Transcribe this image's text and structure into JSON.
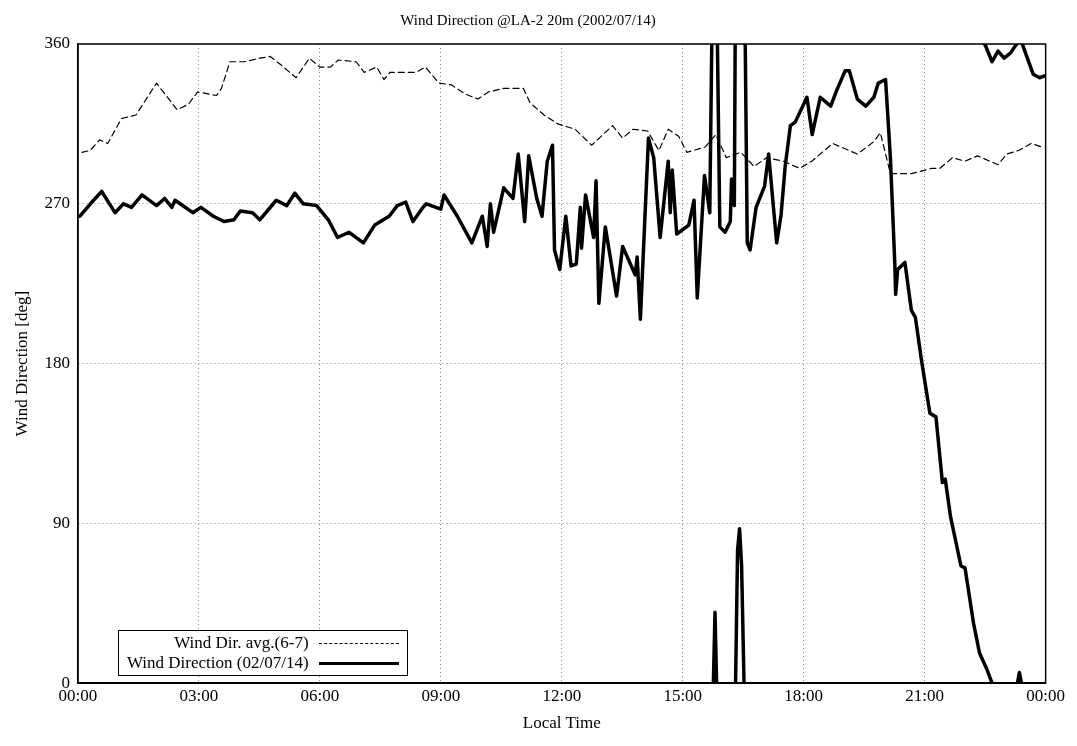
{
  "chart_data": {
    "type": "line",
    "title": "Wind Direction @LA-2 20m (2002/07/14)",
    "xlabel": "Local Time",
    "ylabel": "Wind Direction [deg]",
    "xlim": [
      0,
      24
    ],
    "xticks": [
      {
        "value": 0,
        "label": "00:00"
      },
      {
        "value": 3,
        "label": "03:00"
      },
      {
        "value": 6,
        "label": "06:00"
      },
      {
        "value": 9,
        "label": "09:00"
      },
      {
        "value": 12,
        "label": "12:00"
      },
      {
        "value": 15,
        "label": "15:00"
      },
      {
        "value": 18,
        "label": "18:00"
      },
      {
        "value": 21,
        "label": "21:00"
      },
      {
        "value": 24,
        "label": "00:00"
      }
    ],
    "ylim": [
      0,
      360
    ],
    "yticks": [
      0,
      90,
      180,
      270,
      360
    ],
    "grid": true,
    "legend": "bottom left",
    "series": [
      {
        "name": "Wind Dir. avg.(6-7)",
        "color": "#000000",
        "line_style": "dashed",
        "x": [
          0.1,
          0.3,
          0.54,
          0.74,
          1.08,
          1.44,
          1.95,
          2.46,
          2.74,
          2.97,
          3.44,
          3.56,
          3.77,
          4.13,
          4.51,
          4.77,
          5.05,
          5.41,
          5.74,
          6.0,
          6.26,
          6.46,
          6.9,
          7.1,
          7.41,
          7.59,
          7.74,
          8.38,
          8.62,
          8.95,
          9.26,
          9.59,
          9.92,
          10.18,
          10.56,
          11.05,
          11.21,
          11.56,
          11.9,
          12.33,
          12.74,
          13.26,
          13.51,
          13.77,
          14.13,
          14.41,
          14.64,
          14.9,
          15.1,
          15.56,
          15.82,
          16.08,
          16.44,
          16.77,
          17.08,
          17.49,
          17.9,
          18.2,
          18.72,
          19.33,
          19.74,
          19.9,
          20.15,
          20.67,
          21.18,
          21.38,
          21.69,
          22.0,
          22.31,
          22.82,
          23.03,
          23.33,
          23.64,
          23.9
        ],
        "values": [
          299,
          300,
          306,
          304,
          318,
          320,
          338,
          323,
          326,
          333,
          331,
          335,
          350,
          350,
          352,
          353,
          348,
          341,
          352,
          347,
          347,
          351,
          350,
          344,
          347,
          340,
          344,
          344,
          347,
          338,
          337,
          332,
          329,
          333,
          335,
          335,
          327,
          320,
          315,
          312,
          303,
          314,
          307,
          312,
          311,
          300,
          312,
          308,
          299,
          302,
          309,
          296,
          299,
          291,
          296,
          294,
          290,
          294,
          304,
          298,
          305,
          310,
          287,
          287,
          290,
          290,
          296,
          294,
          297,
          292,
          298,
          300,
          304,
          302
        ]
      },
      {
        "name": "Wind Direction (02/07/14)",
        "color": "#000000",
        "line_style": "solid",
        "x": [
          0.05,
          0.31,
          0.59,
          0.92,
          1.13,
          1.33,
          1.59,
          1.95,
          2.15,
          2.33,
          2.41,
          2.85,
          3.05,
          3.36,
          3.62,
          3.87,
          4.03,
          4.33,
          4.51,
          4.92,
          5.18,
          5.38,
          5.59,
          5.92,
          6.21,
          6.44,
          6.72,
          7.08,
          7.36,
          7.72,
          7.92,
          8.13,
          8.31,
          8.56,
          8.64,
          9.0,
          9.08,
          9.41,
          9.77,
          10.03,
          10.15,
          10.23,
          10.31,
          10.56,
          10.79,
          10.92,
          11.08,
          11.18,
          11.38,
          11.51,
          11.64,
          11.77,
          11.82,
          11.95,
          12.1,
          12.23,
          12.36,
          12.46,
          12.49,
          12.59,
          12.79,
          12.85,
          12.92,
          13.08,
          13.36,
          13.51,
          13.82,
          13.87,
          13.95,
          14.15,
          14.28,
          14.44,
          14.64,
          14.69,
          14.74,
          14.85,
          15.15,
          15.28,
          15.36,
          15.54,
          15.67,
          15.72
        ],
        "values": [
          263,
          270,
          277,
          265,
          270,
          268,
          275,
          269,
          273,
          268,
          272,
          265,
          268,
          263,
          260,
          261,
          266,
          265,
          261,
          272,
          269,
          276,
          270,
          269,
          261,
          251,
          254,
          248,
          258,
          263,
          269,
          271,
          260,
          268,
          270,
          267,
          275,
          263,
          248,
          263,
          246,
          270,
          254,
          279,
          273,
          298,
          260,
          297,
          273,
          263,
          294,
          303,
          244,
          233,
          263,
          235,
          236,
          268,
          245,
          275,
          251,
          283,
          214,
          257,
          218,
          246,
          230,
          240,
          205,
          307,
          296,
          251,
          294,
          265,
          289,
          253,
          258,
          272,
          217,
          286,
          265,
          360
        ]
      },
      {
        "color": "#000000",
        "line_style": "solid",
        "x": [
          15.76,
          15.8,
          15.84
        ],
        "values": [
          0,
          40,
          0
        ]
      },
      {
        "color": "#000000",
        "line_style": "solid",
        "x": [
          15.86,
          15.92,
          16.05,
          16.18,
          16.21,
          16.28,
          16.3
        ],
        "values": [
          360,
          257,
          254,
          260,
          284,
          269,
          360
        ]
      },
      {
        "color": "#000000",
        "line_style": "solid",
        "x": [
          16.31,
          16.36,
          16.41,
          16.46,
          16.52
        ],
        "values": [
          0,
          75,
          87,
          66,
          0
        ]
      },
      {
        "color": "#000000",
        "line_style": "solid",
        "x": [
          16.55,
          16.6,
          16.67,
          16.82,
          17.03,
          17.13,
          17.33,
          17.44,
          17.54,
          17.67,
          17.79,
          18.08,
          18.21,
          18.41,
          18.67,
          18.82,
          19.03,
          19.13,
          19.33,
          19.54,
          19.74,
          19.85,
          20.03,
          20.15,
          20.26,
          20.28,
          20.33,
          20.51,
          20.67,
          20.77,
          20.92,
          21.13,
          21.28,
          21.44,
          21.51,
          21.64,
          21.9,
          22.0,
          22.21,
          22.36,
          22.54,
          22.67
        ],
        "values": [
          360,
          248,
          244,
          268,
          280,
          298,
          248,
          264,
          291,
          314,
          316,
          330,
          309,
          330,
          325,
          334,
          345,
          345,
          329,
          325,
          330,
          338,
          340,
          296,
          236,
          219,
          233,
          237,
          210,
          206,
          182,
          152,
          150,
          113,
          115,
          94,
          66,
          65,
          34,
          17,
          8,
          0
        ]
      },
      {
        "color": "#000000",
        "line_style": "solid",
        "x": [
          22.48,
          22.51,
          22.67,
          22.82,
          22.97,
          23.13,
          23.28
        ],
        "values": [
          360,
          359,
          350,
          356,
          352,
          355,
          360
        ]
      },
      {
        "color": "#000000",
        "line_style": "solid",
        "x": [
          23.3,
          23.35,
          23.4
        ],
        "values": [
          0,
          6,
          0
        ]
      },
      {
        "color": "#000000",
        "line_style": "solid",
        "x": [
          23.42,
          23.69,
          23.85,
          23.97
        ],
        "values": [
          360,
          343,
          341,
          342
        ]
      }
    ]
  }
}
